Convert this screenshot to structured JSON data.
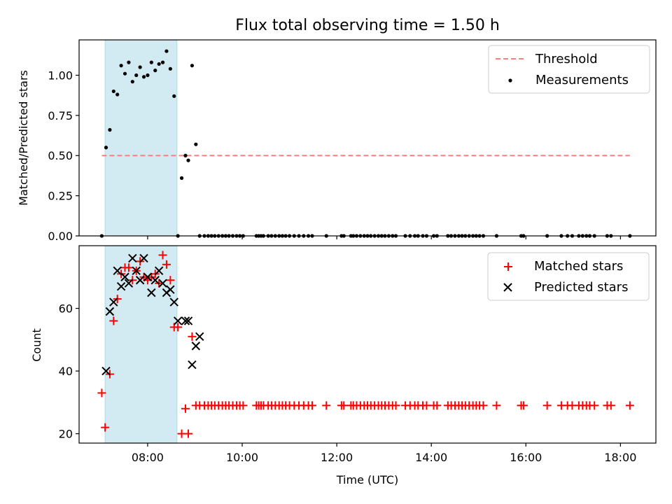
{
  "chart_data": [
    {
      "type": "scatter",
      "title": "Flux total observing time = 1.50 h",
      "xlabel": "",
      "ylabel": "Matched/Predicted stars",
      "xlim": [
        6.55,
        18.75
      ],
      "ylim": [
        0,
        1.22
      ],
      "yticks": [
        0.0,
        0.25,
        0.5,
        0.75,
        1.0
      ],
      "ytick_labels": [
        "0.00",
        "0.25",
        "0.50",
        "0.75",
        "1.00"
      ],
      "xticks": [
        8,
        10,
        12,
        14,
        16,
        18
      ],
      "show_xtick_labels": false,
      "span": {
        "x": [
          7.1,
          8.62
        ],
        "color": "#add8e6"
      },
      "threshold": {
        "name": "Threshold",
        "y": 0.5,
        "x": [
          7.03,
          18.2
        ],
        "color": "#ff7f7f"
      },
      "legend": {
        "placement": "upper right",
        "entries": [
          "Threshold",
          "Measurements"
        ]
      },
      "series": [
        {
          "name": "Measurements",
          "marker": "dot",
          "color": "#000000",
          "x": [
            7.03,
            7.12,
            7.2,
            7.28,
            7.36,
            7.44,
            7.52,
            7.6,
            7.68,
            7.76,
            7.84,
            7.92,
            8.0,
            8.08,
            8.16,
            8.24,
            8.32,
            8.4,
            8.48,
            8.56,
            8.64,
            8.72,
            8.8,
            8.86,
            8.94,
            9.02,
            9.1,
            9.2,
            9.28,
            9.35,
            9.42,
            9.5,
            9.58,
            9.65,
            9.72,
            9.8,
            9.88,
            9.95,
            10.02,
            10.3,
            10.35,
            10.4,
            10.45,
            10.55,
            10.62,
            10.7,
            10.78,
            10.85,
            10.92,
            11.0,
            11.1,
            11.2,
            11.3,
            11.4,
            11.48,
            11.78,
            12.1,
            12.15,
            12.3,
            12.35,
            12.42,
            12.5,
            12.58,
            12.65,
            12.72,
            12.8,
            12.88,
            12.95,
            13.02,
            13.1,
            13.18,
            13.25,
            13.45,
            13.55,
            13.65,
            13.72,
            13.82,
            13.9,
            14.05,
            14.12,
            14.35,
            14.42,
            14.5,
            14.58,
            14.65,
            14.72,
            14.8,
            14.88,
            14.95,
            15.02,
            15.1,
            15.38,
            15.9,
            15.95,
            16.45,
            16.75,
            16.88,
            16.98,
            17.12,
            17.2,
            17.28,
            17.35,
            17.45,
            17.72,
            17.8,
            18.2
          ],
          "y": [
            0.0,
            0.55,
            0.66,
            0.9,
            0.88,
            1.06,
            1.01,
            1.08,
            0.96,
            1.0,
            1.05,
            0.99,
            1.0,
            1.08,
            1.03,
            1.07,
            1.08,
            1.15,
            1.04,
            0.87,
            0.0,
            0.36,
            0.5,
            0.47,
            1.06,
            0.57,
            0.0,
            0.0,
            0.0,
            0.0,
            0.0,
            0.0,
            0.0,
            0.0,
            0.0,
            0.0,
            0.0,
            0.0,
            0.0,
            0.0,
            0.0,
            0.0,
            0.0,
            0.0,
            0.0,
            0.0,
            0.0,
            0.0,
            0.0,
            0.0,
            0.0,
            0.0,
            0.0,
            0.0,
            0.0,
            0.0,
            0.0,
            0.0,
            0.0,
            0.0,
            0.0,
            0.0,
            0.0,
            0.0,
            0.0,
            0.0,
            0.0,
            0.0,
            0.0,
            0.0,
            0.0,
            0.0,
            0.0,
            0.0,
            0.0,
            0.0,
            0.0,
            0.0,
            0.0,
            0.0,
            0.0,
            0.0,
            0.0,
            0.0,
            0.0,
            0.0,
            0.0,
            0.0,
            0.0,
            0.0,
            0.0,
            0.0,
            0.0,
            0.0,
            0.0,
            0.0,
            0.0,
            0.0,
            0.0,
            0.0,
            0.0,
            0.0,
            0.0,
            0.0,
            0.0,
            0.0
          ]
        }
      ]
    },
    {
      "type": "scatter",
      "title": "",
      "xlabel": "Time (UTC)",
      "ylabel": "Count",
      "xlim": [
        6.55,
        18.75
      ],
      "ylim": [
        17,
        80
      ],
      "yticks": [
        20,
        40,
        60
      ],
      "ytick_labels": [
        "20",
        "40",
        "60"
      ],
      "xticks": [
        8,
        10,
        12,
        14,
        16,
        18
      ],
      "xtick_labels": [
        "08:00",
        "10:00",
        "12:00",
        "14:00",
        "16:00",
        "18:00"
      ],
      "span": {
        "x": [
          7.1,
          8.62
        ],
        "color": "#add8e6"
      },
      "legend": {
        "placement": "upper right",
        "entries": [
          "Matched stars",
          "Predicted stars"
        ]
      },
      "series": [
        {
          "name": "Matched stars",
          "marker": "plus",
          "color": "#ff0000",
          "x": [
            7.03,
            7.1,
            7.2,
            7.28,
            7.36,
            7.44,
            7.52,
            7.6,
            7.68,
            7.76,
            7.84,
            7.92,
            8.0,
            8.08,
            8.16,
            8.24,
            8.32,
            8.4,
            8.48,
            8.56,
            8.64,
            8.72,
            8.8,
            8.86,
            8.94,
            9.02,
            9.1,
            9.2,
            9.28,
            9.35,
            9.42,
            9.5,
            9.58,
            9.65,
            9.72,
            9.8,
            9.88,
            9.95,
            10.02,
            10.3,
            10.35,
            10.4,
            10.45,
            10.55,
            10.62,
            10.7,
            10.78,
            10.85,
            10.92,
            11.0,
            11.1,
            11.2,
            11.3,
            11.4,
            11.48,
            11.78,
            12.1,
            12.15,
            12.3,
            12.35,
            12.42,
            12.5,
            12.58,
            12.65,
            12.72,
            12.8,
            12.88,
            12.95,
            13.02,
            13.1,
            13.18,
            13.25,
            13.45,
            13.55,
            13.65,
            13.72,
            13.82,
            13.9,
            14.05,
            14.12,
            14.35,
            14.42,
            14.5,
            14.58,
            14.65,
            14.72,
            14.8,
            14.88,
            14.95,
            15.02,
            15.1,
            15.38,
            15.9,
            15.95,
            16.45,
            16.75,
            16.88,
            16.98,
            17.12,
            17.2,
            17.28,
            17.35,
            17.45,
            17.72,
            17.8,
            18.2
          ],
          "y": [
            33,
            22,
            39,
            56,
            63,
            71,
            73,
            73,
            69,
            72,
            75,
            70,
            69,
            70,
            71,
            68,
            77,
            74,
            69,
            54,
            54,
            20,
            28,
            20,
            51,
            29,
            29,
            29,
            29,
            29,
            29,
            29,
            29,
            29,
            29,
            29,
            29,
            29,
            29,
            29,
            29,
            29,
            29,
            29,
            29,
            29,
            29,
            29,
            29,
            29,
            29,
            29,
            29,
            29,
            29,
            29,
            29,
            29,
            29,
            29,
            29,
            29,
            29,
            29,
            29,
            29,
            29,
            29,
            29,
            29,
            29,
            29,
            29,
            29,
            29,
            29,
            29,
            29,
            29,
            29,
            29,
            29,
            29,
            29,
            29,
            29,
            29,
            29,
            29,
            29,
            29,
            29,
            29,
            29,
            29,
            29,
            29,
            29,
            29,
            29,
            29,
            29,
            29,
            29,
            29,
            29
          ]
        },
        {
          "name": "Predicted stars",
          "marker": "x",
          "color": "#000000",
          "x": [
            7.12,
            7.2,
            7.28,
            7.36,
            7.44,
            7.52,
            7.6,
            7.68,
            7.76,
            7.84,
            7.92,
            8.0,
            8.08,
            8.16,
            8.24,
            8.32,
            8.4,
            8.48,
            8.56,
            8.64,
            8.8,
            8.86,
            8.94,
            9.02,
            9.1
          ],
          "y": [
            40,
            59,
            62,
            72,
            67,
            70,
            68,
            76,
            72,
            69,
            76,
            70,
            65,
            69,
            72,
            68,
            65,
            66,
            62,
            56,
            56,
            56,
            42,
            48,
            51
          ]
        }
      ]
    }
  ]
}
